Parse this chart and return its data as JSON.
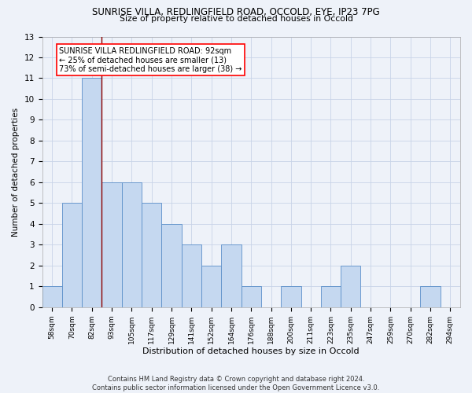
{
  "title1": "SUNRISE VILLA, REDLINGFIELD ROAD, OCCOLD, EYE, IP23 7PG",
  "title2": "Size of property relative to detached houses in Occold",
  "xlabel": "Distribution of detached houses by size in Occold",
  "ylabel": "Number of detached properties",
  "categories": [
    "58sqm",
    "70sqm",
    "82sqm",
    "93sqm",
    "105sqm",
    "117sqm",
    "129sqm",
    "141sqm",
    "152sqm",
    "164sqm",
    "176sqm",
    "188sqm",
    "200sqm",
    "211sqm",
    "223sqm",
    "235sqm",
    "247sqm",
    "259sqm",
    "270sqm",
    "282sqm",
    "294sqm"
  ],
  "values": [
    1,
    5,
    11,
    6,
    6,
    5,
    4,
    3,
    2,
    3,
    1,
    0,
    1,
    0,
    1,
    2,
    0,
    0,
    0,
    1,
    0
  ],
  "bar_color": "#c5d8f0",
  "bar_edge_color": "#5b8fc9",
  "vline_x": 2.5,
  "vline_color": "#8b0000",
  "ylim": [
    0,
    13
  ],
  "yticks": [
    0,
    1,
    2,
    3,
    4,
    5,
    6,
    7,
    8,
    9,
    10,
    11,
    12,
    13
  ],
  "annotation_text": "SUNRISE VILLA REDLINGFIELD ROAD: 92sqm\n← 25% of detached houses are smaller (13)\n73% of semi-detached houses are larger (38) →",
  "footnote": "Contains HM Land Registry data © Crown copyright and database right 2024.\nContains public sector information licensed under the Open Government Licence v3.0.",
  "bg_color": "#eef2f9",
  "grid_color": "#c8d4e8"
}
